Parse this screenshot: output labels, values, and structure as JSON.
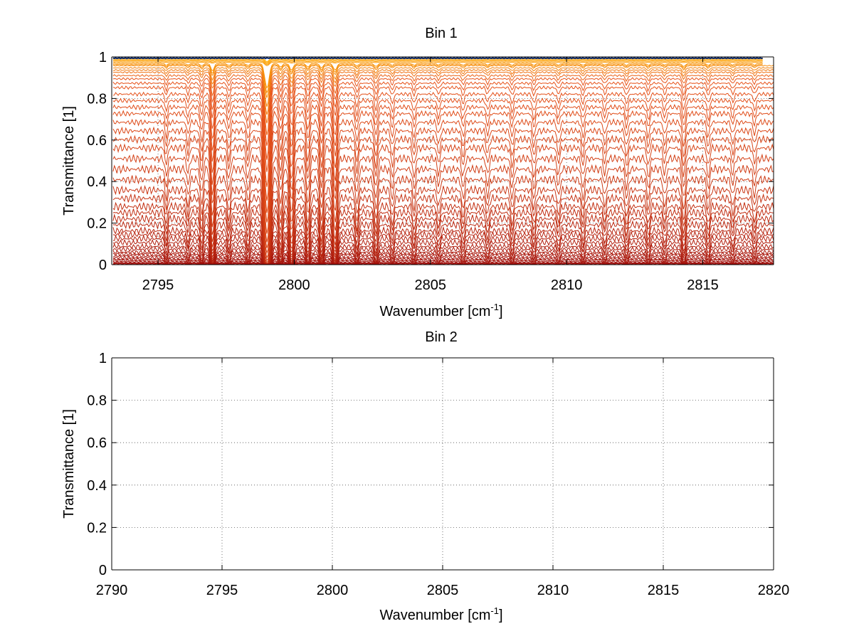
{
  "chart_data": [
    {
      "type": "line",
      "title": "Bin 1",
      "xlabel": {
        "main": "Wavenumber [cm",
        "sup": "-1",
        "close": "]"
      },
      "ylabel": "Transmittance [1]",
      "xlim": [
        2793.3,
        2817.6
      ],
      "ylim": [
        0,
        1
      ],
      "xticks": [
        2795,
        2800,
        2805,
        2810,
        2815
      ],
      "xtick_labels": [
        "2795",
        "2800",
        "2805",
        "2810",
        "2815"
      ],
      "yticks": [
        0,
        0.2,
        0.4,
        0.6,
        0.8,
        1
      ],
      "ytick_labels": [
        "0",
        "0.2",
        "0.4",
        "0.6",
        "0.8",
        "1"
      ],
      "grid": true,
      "grid_style": "dotted",
      "series_count": 60,
      "baseline_levels": [
        0.995,
        0.99,
        0.985,
        0.98,
        0.975,
        0.97,
        0.965,
        0.96,
        0.95,
        0.94,
        0.93,
        0.915,
        0.9,
        0.88,
        0.86,
        0.83,
        0.8,
        0.77,
        0.74,
        0.7,
        0.66,
        0.62,
        0.58,
        0.53,
        0.48,
        0.43,
        0.38,
        0.34,
        0.3,
        0.27,
        0.24,
        0.21,
        0.18,
        0.16,
        0.14,
        0.12,
        0.1,
        0.085,
        0.07,
        0.06,
        0.05,
        0.04,
        0.032,
        0.025,
        0.018,
        0.012,
        0.008,
        0.005
      ],
      "absorption_lines": [
        {
          "x": 2795.3,
          "depth": 0.06,
          "width": 0.06
        },
        {
          "x": 2796.1,
          "depth": 0.05,
          "width": 0.06
        },
        {
          "x": 2796.6,
          "depth": 0.08,
          "width": 0.07
        },
        {
          "x": 2797.0,
          "depth": 0.25,
          "width": 0.08
        },
        {
          "x": 2797.6,
          "depth": 0.07,
          "width": 0.07
        },
        {
          "x": 2798.3,
          "depth": 0.07,
          "width": 0.07
        },
        {
          "x": 2799.0,
          "depth": 0.85,
          "width": 0.11
        },
        {
          "x": 2799.5,
          "depth": 0.12,
          "width": 0.08
        },
        {
          "x": 2799.9,
          "depth": 0.22,
          "width": 0.09
        },
        {
          "x": 2800.5,
          "depth": 0.12,
          "width": 0.08
        },
        {
          "x": 2801.0,
          "depth": 0.15,
          "width": 0.08
        },
        {
          "x": 2801.5,
          "depth": 0.22,
          "width": 0.09
        },
        {
          "x": 2802.3,
          "depth": 0.08,
          "width": 0.07
        },
        {
          "x": 2803.0,
          "depth": 0.1,
          "width": 0.08
        },
        {
          "x": 2803.6,
          "depth": 0.06,
          "width": 0.07
        },
        {
          "x": 2804.4,
          "depth": 0.06,
          "width": 0.07
        },
        {
          "x": 2805.3,
          "depth": 0.05,
          "width": 0.07
        },
        {
          "x": 2806.2,
          "depth": 0.06,
          "width": 0.07
        },
        {
          "x": 2807.1,
          "depth": 0.05,
          "width": 0.07
        },
        {
          "x": 2808.0,
          "depth": 0.06,
          "width": 0.07
        },
        {
          "x": 2808.8,
          "depth": 0.06,
          "width": 0.07
        },
        {
          "x": 2809.7,
          "depth": 0.05,
          "width": 0.07
        },
        {
          "x": 2810.6,
          "depth": 0.06,
          "width": 0.07
        },
        {
          "x": 2811.4,
          "depth": 0.05,
          "width": 0.07
        },
        {
          "x": 2812.2,
          "depth": 0.06,
          "width": 0.07
        },
        {
          "x": 2813.0,
          "depth": 0.06,
          "width": 0.07
        },
        {
          "x": 2813.6,
          "depth": 0.05,
          "width": 0.07
        },
        {
          "x": 2814.3,
          "depth": 0.1,
          "width": 0.08
        },
        {
          "x": 2815.2,
          "depth": 0.06,
          "width": 0.07
        },
        {
          "x": 2816.1,
          "depth": 0.05,
          "width": 0.07
        },
        {
          "x": 2816.9,
          "depth": 0.05,
          "width": 0.07
        }
      ],
      "colors": {
        "top": "#0b2a6e",
        "high": "#ffb000",
        "mid": "#e8541a",
        "low": "#9c0a0a"
      }
    },
    {
      "type": "line",
      "title": "Bin 2",
      "xlabel": {
        "main": "Wavenumber [cm",
        "sup": "-1",
        "close": "]"
      },
      "ylabel": "Transmittance [1]",
      "xlim": [
        2790,
        2820
      ],
      "ylim": [
        0,
        1
      ],
      "xticks": [
        2790,
        2795,
        2800,
        2805,
        2810,
        2815,
        2820
      ],
      "xtick_labels": [
        "2790",
        "2795",
        "2800",
        "2805",
        "2810",
        "2815",
        "2820"
      ],
      "yticks": [
        0,
        0.2,
        0.4,
        0.6,
        0.8,
        1
      ],
      "ytick_labels": [
        "0",
        "0.2",
        "0.4",
        "0.6",
        "0.8",
        "1"
      ],
      "grid": true,
      "grid_style": "dotted",
      "series": []
    }
  ]
}
